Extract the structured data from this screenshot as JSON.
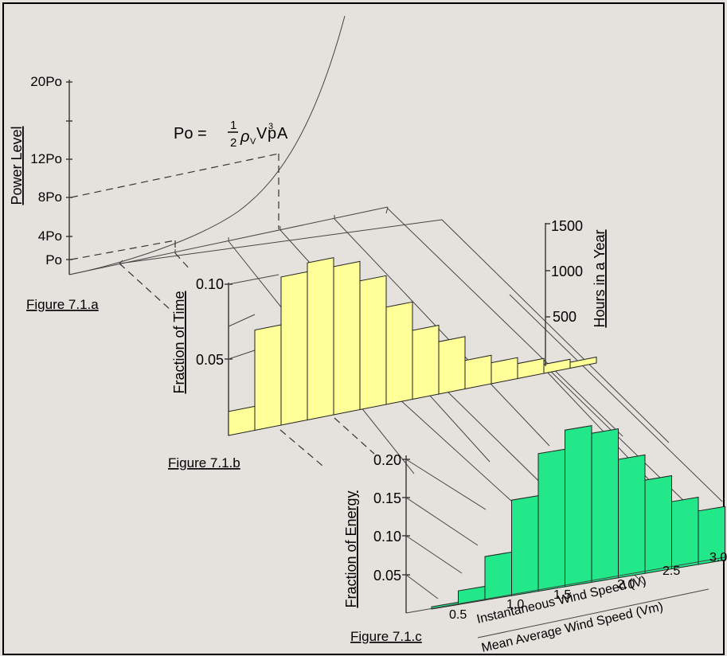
{
  "figure_a": {
    "caption": "Figure 7.1.a",
    "ylabel": "Power Level",
    "ticks": [
      "20Po",
      "12Po",
      "8Po",
      "4Po",
      "Po"
    ],
    "formula": {
      "lhs": "Po = ",
      "num": "1",
      "den": "2",
      "rho": "ρ",
      "rho_sub": "V",
      "v": "V",
      "exp": "3",
      "p": "p",
      "a": "A"
    }
  },
  "figure_b": {
    "caption": "Figure 7.1.b",
    "ylabel": "Fraction of Time",
    "ticks": [
      "0.10",
      "0.05"
    ],
    "right_label": "Hours in a Year",
    "right_ticks": [
      "1500",
      "1000",
      "500"
    ],
    "color": "#ffff99"
  },
  "figure_c": {
    "caption": "Figure 7.1.c",
    "ylabel": "Fraction of Energy",
    "ticks": [
      "0.20",
      "0.15",
      "0.10",
      "0.05"
    ],
    "x_ticks": [
      "0.5",
      "1.0",
      "1.5",
      "2.0",
      "2.5",
      "3.0"
    ],
    "xlabel": "Instantaneous Wind Speed (V)",
    "xlabel2": "Mean Average Wind Speed (Vm)",
    "color": "#22e88a"
  },
  "chart_data": [
    {
      "type": "bar",
      "title": "Figure 7.1.b",
      "ylabel": "Fraction of Time",
      "ylim": [
        0,
        0.11
      ],
      "values": [
        0.016,
        0.067,
        0.099,
        0.105,
        0.099,
        0.086,
        0.065,
        0.046,
        0.035,
        0.019,
        0.014,
        0.01,
        0.006,
        0.004
      ]
    },
    {
      "type": "bar",
      "title": "Figure 7.1.c",
      "ylabel": "Fraction of Energy",
      "xlabel": "Instantaneous Wind Speed (V)",
      "ylim": [
        0,
        0.22
      ],
      "x_ticks": [
        0.5,
        1.0,
        1.5,
        2.0,
        2.5,
        3.0
      ],
      "values": [
        0.003,
        0.018,
        0.057,
        0.125,
        0.18,
        0.205,
        0.195,
        0.155,
        0.122,
        0.088,
        0.07
      ]
    }
  ]
}
